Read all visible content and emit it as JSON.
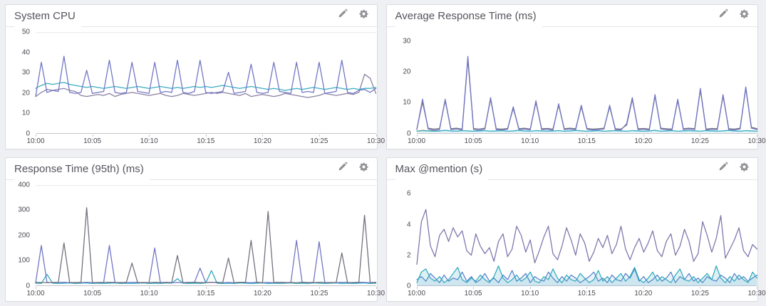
{
  "page": {
    "bg": "#eff0f3",
    "panel_bg": "#ffffff",
    "panel_border": "#dcdce0",
    "axis_color": "#c6c6cc",
    "tick_label_color": "#4b4b53",
    "title_color": "#54555c",
    "icon_color": "#909095"
  },
  "header_icons": {
    "edit": "pencil-icon",
    "settings": "gear-icon"
  },
  "xaxis": {
    "range": [
      0,
      30
    ],
    "labels": [
      "10:00",
      "10:05",
      "10:10",
      "10:15",
      "10:20",
      "10:25",
      "10:30"
    ],
    "minutes": [
      0,
      5,
      10,
      15,
      20,
      25,
      30
    ]
  },
  "chart_data": [
    {
      "type": "line",
      "title": "System CPU",
      "ymax": 50,
      "yticks": [
        0,
        10,
        20,
        30,
        40,
        50
      ],
      "top_line": true,
      "series": [
        {
          "name": "cpu-wander-purple",
          "color": "#8a81a1",
          "width": 1.3,
          "values": [
            18,
            20,
            21.5,
            21,
            21.5,
            22,
            21,
            20.5,
            18.5,
            18,
            18.5,
            19,
            18.5,
            19.5,
            18,
            19,
            19.5,
            20,
            19.5,
            19,
            18.5,
            19,
            19.5,
            18.5,
            18,
            18.5,
            19.5,
            19,
            18.5,
            19,
            19.5,
            20,
            19.5,
            20,
            19.5,
            19,
            18.5,
            19.5,
            18,
            18.5,
            19,
            18.5,
            18,
            18.5,
            19.5,
            19,
            18.5,
            18,
            17.5,
            18,
            18.5,
            19.5,
            19,
            18.5,
            19,
            19.5,
            19,
            20,
            29,
            27,
            19.5
          ]
        },
        {
          "name": "cpu-steady-cyan",
          "color": "#3badc3",
          "width": 1.3,
          "values": [
            22,
            23.5,
            24.5,
            24,
            24.5,
            25,
            24,
            23.5,
            23,
            22.5,
            23,
            22.5,
            22,
            22.5,
            23,
            22.5,
            22,
            22.5,
            23,
            22.5,
            22,
            22.5,
            23,
            22.5,
            22,
            22.5,
            22,
            22.5,
            23,
            22.5,
            23,
            22.5,
            23,
            23.5,
            23,
            22.5,
            22,
            22.5,
            23,
            22.5,
            22,
            21.5,
            22,
            21.5,
            21,
            21.5,
            22,
            21.5,
            22,
            22.5,
            22,
            21.5,
            22,
            22.5,
            22,
            21.5,
            22,
            21.5,
            22,
            22,
            22.5
          ]
        },
        {
          "name": "cpu-spiky-indigo",
          "color": "#7277c5",
          "width": 1.3,
          "values": [
            18,
            35,
            20,
            21,
            20.5,
            38,
            20,
            19.5,
            20,
            31,
            19.5,
            20,
            20.5,
            36,
            20,
            19.5,
            20,
            35,
            20.5,
            20,
            19.5,
            35,
            20,
            20.5,
            20,
            36,
            20,
            19.5,
            20.5,
            36,
            20,
            19.5,
            20,
            20.5,
            30,
            19.5,
            20,
            20.5,
            34,
            20,
            19.5,
            20,
            35,
            20.5,
            20,
            19.5,
            35,
            20,
            20.5,
            20,
            35,
            19.5,
            20,
            20.5,
            36,
            20,
            19.5,
            21,
            21.5,
            20,
            22
          ]
        }
      ]
    },
    {
      "type": "line",
      "title": "Average Response Time (ms)",
      "ymax": 33,
      "yticks": [
        0,
        10,
        20,
        30
      ],
      "top_line": false,
      "series": [
        {
          "name": "resp-orange",
          "color": "#e0a23e",
          "width": 1.3,
          "x_end": 2,
          "values": [
            0.5,
            0.8,
            0.6,
            0.7,
            0.5
          ]
        },
        {
          "name": "resp-cyan",
          "color": "#3badc3",
          "width": 1.3,
          "fill": true,
          "fill_opacity": 0.18,
          "values": [
            0.5,
            0.7,
            0.6,
            0.5,
            0.6,
            0.8,
            0.6,
            0.5,
            0.7,
            0.6,
            0.5,
            0.6,
            0.7,
            0.5,
            0.6,
            0.7,
            0.5,
            0.6,
            0.8,
            0.6,
            0.5,
            0.7,
            0.6,
            0.5,
            0.6,
            0.7,
            0.5,
            0.6,
            0.8,
            0.6,
            0.5,
            0.6,
            0.7,
            0.5,
            0.6,
            0.7,
            0.6,
            0.5,
            0.7,
            0.6,
            0.5,
            0.6,
            0.8,
            0.5,
            0.6,
            0.7,
            0.5,
            0.6,
            0.7,
            0.6,
            0.5,
            0.7,
            0.6,
            0.5,
            0.6,
            0.8,
            0.6,
            0.5,
            0.7,
            0.6,
            0.5
          ]
        },
        {
          "name": "resp-gray",
          "color": "#75757f",
          "width": 1.3,
          "values": [
            1.2,
            10,
            1.5,
            1.2,
            1.4,
            10.5,
            1.3,
            1.5,
            1.2,
            24,
            1.4,
            1.2,
            1.5,
            11,
            1.3,
            1.2,
            1.4,
            8,
            1.3,
            1.5,
            1.2,
            10,
            1.3,
            1.4,
            1.2,
            9,
            1.3,
            1.5,
            1.3,
            8.5,
            1.4,
            1.2,
            1.3,
            1.5,
            8.5,
            1.3,
            1.2,
            2.5,
            11,
            1.3,
            1.4,
            1.2,
            12,
            1.5,
            1.3,
            1.2,
            10.5,
            1.3,
            1.5,
            1.3,
            14,
            1.2,
            1.4,
            1.3,
            12,
            1.3,
            1.2,
            1.5,
            14.5,
            1.8,
            1.3
          ]
        },
        {
          "name": "resp-indigo",
          "color": "#7277c5",
          "width": 1.3,
          "values": [
            1,
            11,
            1.2,
            0.8,
            1,
            11,
            1,
            1.2,
            0.9,
            25,
            1,
            0.8,
            1.2,
            11.5,
            1,
            0.9,
            1.1,
            8.5,
            1,
            1.2,
            0.9,
            10.5,
            1,
            1.1,
            0.8,
            9.5,
            1,
            1.2,
            1,
            9,
            1.1,
            0.9,
            1,
            1.2,
            9,
            1,
            0.9,
            3,
            11.5,
            1,
            1.1,
            0.9,
            12.5,
            1.2,
            1,
            0.9,
            11,
            1,
            1.2,
            1,
            14.5,
            0.9,
            1.1,
            1,
            12.5,
            1,
            0.9,
            1.2,
            15,
            1.5,
            1
          ]
        }
      ]
    },
    {
      "type": "line",
      "title": "Response Time (95th) (ms)",
      "ymax": 400,
      "yticks": [
        0,
        100,
        200,
        300,
        400
      ],
      "top_line": true,
      "series": [
        {
          "name": "p95-teal",
          "color": "#2ca8bd",
          "width": 1.3,
          "values": [
            10,
            9,
            45,
            10,
            9,
            10,
            11,
            9,
            10,
            11,
            9,
            10,
            9,
            10,
            11,
            9,
            10,
            9,
            10,
            11,
            9,
            10,
            9,
            11,
            10,
            28,
            10,
            9,
            10,
            9,
            11,
            60,
            10,
            9,
            10,
            9,
            11,
            10,
            9,
            10,
            11,
            9,
            10,
            9,
            10,
            11,
            9,
            10,
            9,
            11,
            10,
            9,
            10,
            11,
            9,
            10,
            9,
            10,
            11,
            9,
            10
          ]
        },
        {
          "name": "p95-indigo",
          "color": "#7277c5",
          "width": 1.3,
          "values": [
            12,
            160,
            14,
            12,
            13,
            14,
            12,
            13,
            12,
            14,
            12,
            13,
            14,
            160,
            12,
            13,
            12,
            14,
            13,
            12,
            13,
            150,
            12,
            14,
            12,
            13,
            12,
            14,
            13,
            70,
            12,
            13,
            14,
            12,
            13,
            12,
            14,
            13,
            12,
            14,
            12,
            13,
            12,
            14,
            13,
            12,
            180,
            13,
            12,
            14,
            175,
            12,
            13,
            12,
            14,
            13,
            12,
            14,
            13,
            12,
            14
          ]
        },
        {
          "name": "p95-gray",
          "color": "#72727e",
          "width": 1.3,
          "values": [
            14,
            13,
            12,
            13,
            14,
            170,
            13,
            12,
            14,
            310,
            13,
            12,
            13,
            14,
            13,
            12,
            14,
            90,
            12,
            13,
            12,
            14,
            13,
            12,
            13,
            120,
            12,
            13,
            14,
            13,
            12,
            14,
            12,
            13,
            110,
            12,
            13,
            14,
            180,
            13,
            12,
            295,
            13,
            14,
            12,
            13,
            12,
            14,
            13,
            12,
            14,
            13,
            12,
            13,
            130,
            12,
            13,
            14,
            280,
            13,
            12
          ]
        }
      ]
    },
    {
      "type": "line",
      "title": "Max @mention (s)",
      "ymax": 6.6,
      "yticks": [
        0,
        2,
        4,
        6
      ],
      "top_line": false,
      "series": [
        {
          "name": "mention-purple",
          "color": "#8077ad",
          "width": 1.3,
          "values": [
            1.4,
            4.2,
            5.0,
            2.6,
            1.9,
            3.3,
            3.7,
            2.9,
            3.8,
            3.2,
            3.6,
            2.3,
            2.0,
            3.4,
            2.6,
            2.1,
            2.5,
            1.6,
            2.9,
            3.4,
            1.9,
            2.4,
            3.9,
            3.3,
            2.2,
            3.0,
            1.5,
            2.3,
            3.2,
            3.9,
            2.1,
            1.7,
            2.6,
            3.8,
            3.0,
            2.0,
            3.4,
            2.8,
            1.6,
            2.2,
            3.1,
            2.5,
            3.3,
            2.1,
            2.7,
            3.9,
            2.4,
            1.7,
            2.5,
            3.1,
            2.2,
            2.8,
            3.6,
            2.3,
            1.9,
            2.9,
            3.4,
            2.0,
            2.6,
            3.7,
            2.9,
            1.6,
            2.1,
            4.2,
            3.3,
            2.2,
            3.1,
            4.6,
            1.8,
            2.4,
            3.0,
            3.8,
            2.3,
            1.9,
            2.7,
            2.4
          ]
        },
        {
          "name": "mention-blue",
          "color": "#4f7ec9",
          "width": 1.2,
          "fill": true,
          "fill_opacity": 0.1,
          "values": [
            0.4,
            0.6,
            0.3,
            0.8,
            0.5,
            0.2,
            0.7,
            0.3,
            0.5,
            0.4,
            0.9,
            0.3,
            0.6,
            0.2,
            0.4,
            0.8,
            0.3,
            0.5,
            0.2,
            0.7,
            0.4,
            1.0,
            0.3,
            0.5,
            0.8,
            0.2,
            0.6,
            0.4,
            0.3,
            0.9,
            0.5,
            0.2,
            0.6,
            0.3,
            0.7,
            0.5,
            0.2,
            0.4,
            0.6,
            0.9,
            0.3,
            0.5,
            0.2,
            0.7,
            0.4,
            0.3,
            0.8,
            0.5,
            1.1,
            0.3,
            0.6,
            0.2,
            0.4,
            0.7,
            0.3,
            0.5,
            0.9,
            0.2,
            0.6,
            0.4,
            0.8,
            0.3,
            0.5,
            0.2,
            0.6,
            0.4,
            0.3,
            0.7,
            0.5,
            0.2,
            0.8,
            0.4,
            0.6,
            0.3,
            0.5,
            0.7
          ]
        },
        {
          "name": "mention-teal",
          "color": "#2ba7bd",
          "width": 1.2,
          "fill": true,
          "fill_opacity": 0.16,
          "values": [
            0.2,
            0.9,
            1.1,
            0.5,
            0.3,
            0.6,
            0.2,
            0.4,
            0.8,
            1.2,
            0.4,
            0.2,
            0.5,
            0.3,
            0.7,
            0.4,
            0.2,
            0.6,
            1.3,
            0.5,
            0.2,
            0.4,
            0.7,
            0.3,
            0.5,
            0.9,
            0.3,
            0.2,
            0.6,
            0.4,
            1.1,
            0.5,
            0.2,
            0.7,
            0.4,
            0.3,
            0.8,
            0.5,
            0.2,
            0.4,
            1.0,
            0.3,
            0.6,
            0.2,
            0.5,
            0.8,
            0.3,
            0.6,
            1.2,
            0.4,
            0.2,
            0.5,
            0.9,
            0.3,
            0.6,
            0.4,
            0.2,
            0.7,
            1.1,
            0.4,
            0.3,
            0.6,
            0.2,
            0.5,
            0.8,
            0.4,
            1.3,
            0.5,
            0.2,
            0.6,
            0.3,
            0.7,
            0.4,
            0.2,
            0.9,
            0.5
          ]
        }
      ]
    }
  ]
}
